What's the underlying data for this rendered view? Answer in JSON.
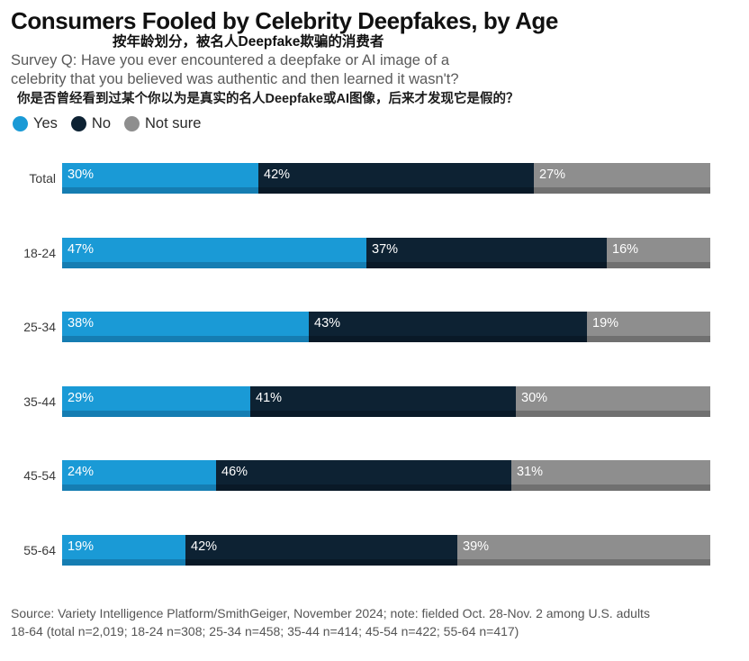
{
  "chart_data": {
    "type": "bar",
    "orientation": "horizontal",
    "stacked": "100%",
    "title": "Consumers Fooled by Celebrity Deepfakes, by Age",
    "title_zh": "按年龄划分，被名人Deepfake欺骗的消费者",
    "question": [
      "Survey Q: Have you ever encountered a deepfake or AI image of a",
      "celebrity that you believed was authentic and then learned it wasn't?"
    ],
    "question_zh": "你是否曾经看到过某个你以为是真实的名人Deepfake或AI图像，后来才发现它是假的？",
    "categories": [
      "Total",
      "18-24",
      "25-34",
      "35-44",
      "45-54",
      "55-64"
    ],
    "series": [
      {
        "name": "Yes",
        "color": "#1a9ad6",
        "shade": "#157db2",
        "values": [
          30,
          47,
          38,
          29,
          24,
          19
        ]
      },
      {
        "name": "No",
        "color": "#0d2233",
        "shade": "#091927",
        "values": [
          42,
          37,
          43,
          41,
          46,
          42
        ]
      },
      {
        "name": "Not sure",
        "color": "#8e8e8e",
        "shade": "#707070",
        "values": [
          27,
          16,
          19,
          30,
          31,
          39
        ]
      }
    ],
    "unit": "%",
    "legend": "top-left",
    "grid": false
  },
  "source": [
    "Source: Variety Intelligence Platform/SmithGeiger, November 2024; note: fielded Oct. 28-Nov. 2 among U.S. adults",
    "18-64 (total n=2,019; 18-24 n=308; 25-34 n=458; 35-44 n=414; 45-54 n=422; 55-64 n=417)"
  ]
}
